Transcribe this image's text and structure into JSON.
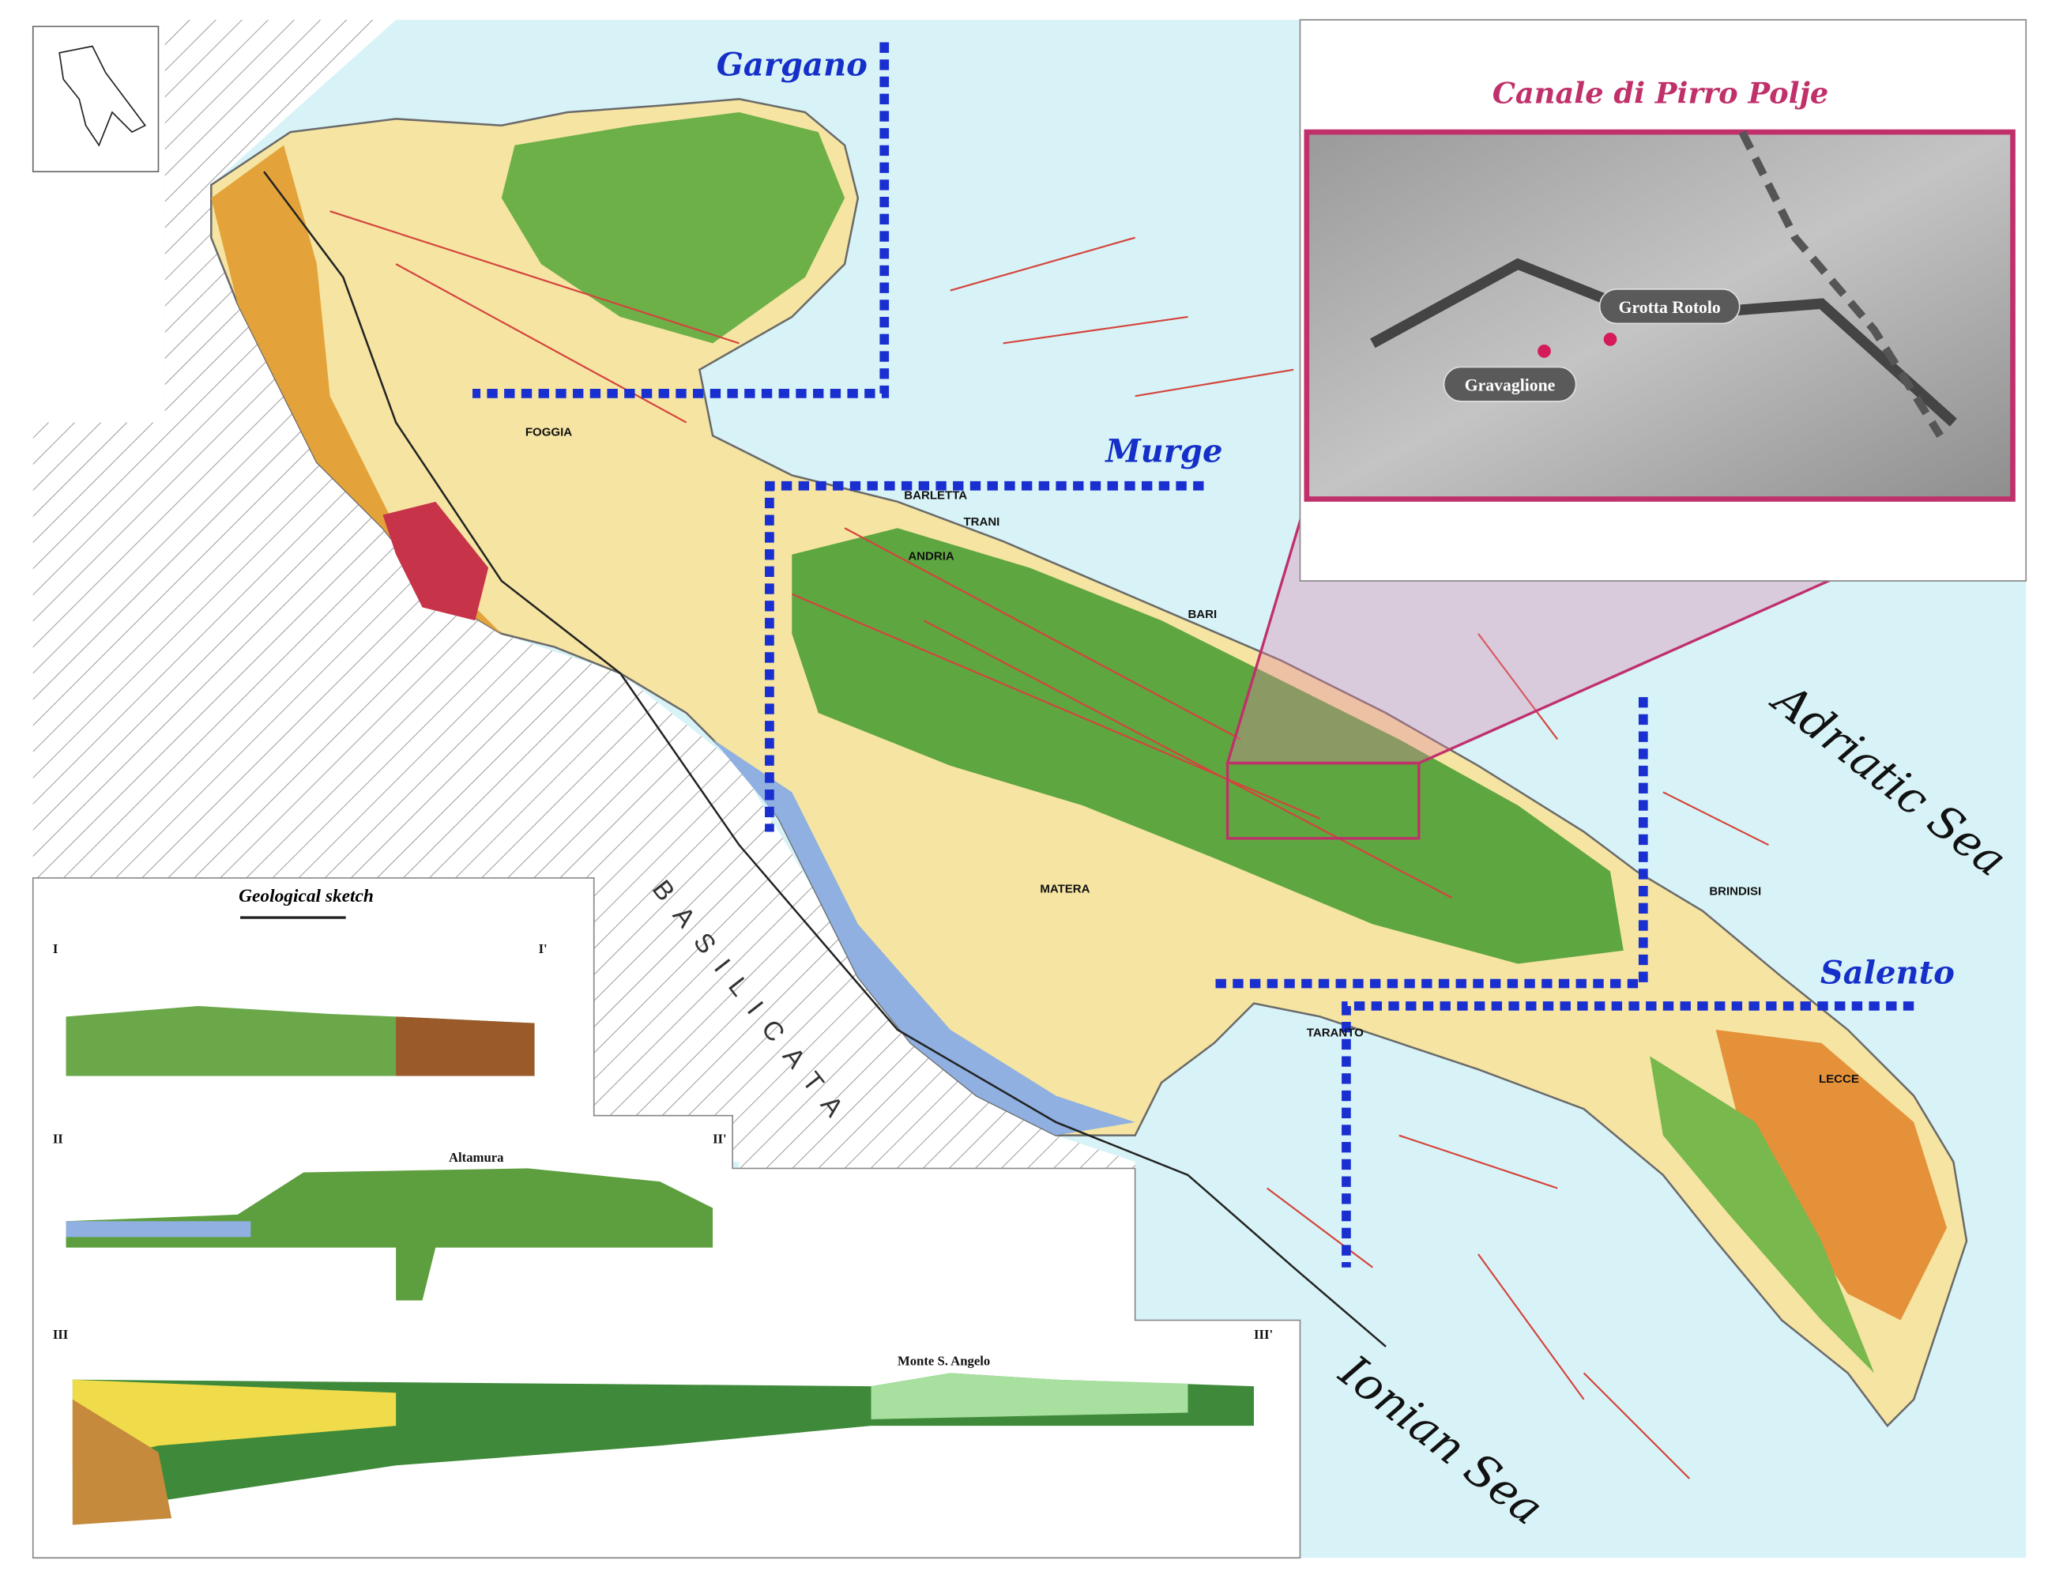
{
  "inset": {
    "title": "Canale di Pirro Polje",
    "labels": [
      "Grotta Rotolo",
      "Gravaglione"
    ]
  },
  "regions": [
    "Gargano",
    "Murge",
    "Salento"
  ],
  "seas": [
    "Adriatic Sea",
    "Ionian Sea"
  ],
  "territory": "BASILICATA",
  "towns": [
    "FOGGIA",
    "BARLETTA",
    "TRANI",
    "ANDRIA",
    "BARI",
    "MATERA",
    "TARANTO",
    "BRINDISI",
    "LECCE"
  ],
  "sketch": {
    "title": "Geological sketch",
    "sections": [
      {
        "start": "I",
        "end": "I'"
      },
      {
        "start": "II",
        "end": "II'"
      },
      {
        "start": "III",
        "end": "III'"
      }
    ],
    "places": [
      "Monte S. Angelo",
      "Altamura"
    ]
  }
}
